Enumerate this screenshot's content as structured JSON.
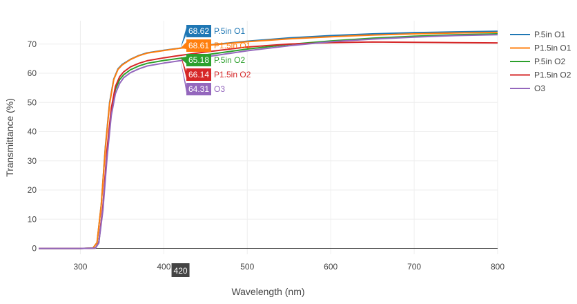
{
  "chart_data": {
    "type": "line",
    "xlabel": "Wavelength (nm)",
    "ylabel": "Transmittance (%)",
    "xlim": [
      250,
      800
    ],
    "ylim": [
      -2,
      78
    ],
    "xticks": [
      300,
      400,
      500,
      600,
      700,
      800
    ],
    "yticks": [
      0,
      10,
      20,
      30,
      40,
      50,
      60,
      70
    ],
    "grid": true,
    "legend_position": "top-right",
    "hover": {
      "x": 420,
      "x_label": "420"
    },
    "series": [
      {
        "name": "P.5in O1",
        "color": "#1f77b4",
        "x": [
          250,
          300,
          315,
          320,
          325,
          330,
          335,
          340,
          345,
          350,
          360,
          370,
          380,
          400,
          420,
          450,
          500,
          550,
          600,
          650,
          700,
          750,
          800
        ],
        "y": [
          0,
          0,
          0.1,
          2,
          15,
          35,
          50,
          58,
          61.5,
          63,
          64.8,
          66.1,
          67,
          67.9,
          68.62,
          69.6,
          71,
          72.1,
          72.9,
          73.5,
          73.9,
          74.2,
          74.4
        ],
        "hover_value": "68.62"
      },
      {
        "name": "P1.5in O1",
        "color": "#ff7f0e",
        "x": [
          250,
          300,
          315,
          320,
          325,
          330,
          335,
          340,
          345,
          350,
          360,
          370,
          380,
          400,
          420,
          450,
          500,
          550,
          600,
          650,
          700,
          750,
          800
        ],
        "y": [
          0,
          0,
          0.1,
          2,
          15,
          34.5,
          49.5,
          57.8,
          61.3,
          62.8,
          64.7,
          66,
          66.9,
          67.8,
          68.61,
          69.5,
          70.8,
          71.8,
          72.5,
          73.1,
          73.5,
          73.8,
          74
        ],
        "hover_value": "68.61"
      },
      {
        "name": "P.5in O2",
        "color": "#2ca02c",
        "x": [
          250,
          300,
          318,
          322,
          327,
          332,
          337,
          342,
          347,
          352,
          360,
          370,
          380,
          400,
          420,
          450,
          500,
          550,
          600,
          650,
          700,
          750,
          800
        ],
        "y": [
          0,
          0,
          0.1,
          2,
          14,
          33,
          47,
          54.5,
          57.8,
          59.5,
          61.2,
          62.5,
          63.4,
          64.4,
          65.18,
          66.3,
          68.3,
          69.9,
          71.1,
          72,
          72.7,
          73.2,
          73.5
        ],
        "hover_value": "65.18"
      },
      {
        "name": "P1.5in O2",
        "color": "#d62728",
        "x": [
          250,
          300,
          318,
          322,
          327,
          332,
          337,
          342,
          347,
          352,
          360,
          370,
          380,
          400,
          420,
          450,
          500,
          550,
          600,
          650,
          700,
          750,
          800
        ],
        "y": [
          0,
          0,
          0.1,
          2,
          14.5,
          34,
          48,
          55.5,
          58.8,
          60.5,
          62.2,
          63.4,
          64.3,
          65.3,
          66.14,
          67.3,
          69,
          70,
          70.5,
          70.7,
          70.6,
          70.5,
          70.4
        ],
        "hover_value": "66.14"
      },
      {
        "name": "O3",
        "color": "#9467bd",
        "x": [
          250,
          300,
          318,
          322,
          327,
          332,
          337,
          342,
          347,
          352,
          360,
          370,
          380,
          400,
          420,
          450,
          500,
          550,
          600,
          650,
          700,
          750,
          800
        ],
        "y": [
          0,
          0,
          0.1,
          1.8,
          13,
          31,
          45.5,
          53,
          56.5,
          58.5,
          60.2,
          61.5,
          62.5,
          63.5,
          64.31,
          65.6,
          67.7,
          69.4,
          70.8,
          71.7,
          72.4,
          72.9,
          73.2
        ],
        "hover_value": "64.31"
      }
    ]
  }
}
